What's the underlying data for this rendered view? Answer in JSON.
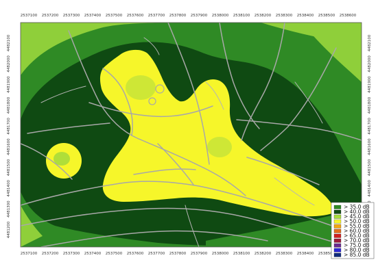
{
  "x_ticks": [
    "2537100",
    "2537200",
    "2537300",
    "2537400",
    "2537500",
    "2537600",
    "2537700",
    "2537800",
    "2537900",
    "2538000",
    "2538100",
    "2538200",
    "2538300",
    "2538400",
    "2538500",
    "2538600"
  ],
  "y_ticks": [
    "4482100",
    "4482000",
    "4481900",
    "4481800",
    "4481700",
    "4481600",
    "4481500",
    "4481400",
    "4481300",
    "4481200"
  ],
  "legend": [
    {
      "label": "> 35.0 dB",
      "color": "#2f8a25"
    },
    {
      "label": "> 40.0 dB",
      "color": "#0f4a12"
    },
    {
      "label": "> 45.0 dB",
      "color": "#a8dc3b"
    },
    {
      "label": "> 50.0 dB",
      "color": "#f6f62a"
    },
    {
      "label": "> 55.0 dB",
      "color": "#f2a813"
    },
    {
      "label": "> 60.0 dB",
      "color": "#e2701e"
    },
    {
      "label": "> 65.0 dB",
      "color": "#d11f1f"
    },
    {
      "label": "> 70.0 dB",
      "color": "#9c1a3a"
    },
    {
      "label": "> 75.0 dB",
      "color": "#6a2a8f"
    },
    {
      "label": "> 80.0 dB",
      "color": "#2e28d8"
    },
    {
      "label": "> 85.0 dB",
      "color": "#102a7c"
    }
  ],
  "zone_colors": {
    "zone_40": "#8fcf3a",
    "zone_35": "#2f8a25",
    "zone_40_inner": "#0f4a12",
    "zone_45": "#a8dc3b",
    "zone_50": "#f6f62a",
    "road": "#a8a8a8"
  }
}
